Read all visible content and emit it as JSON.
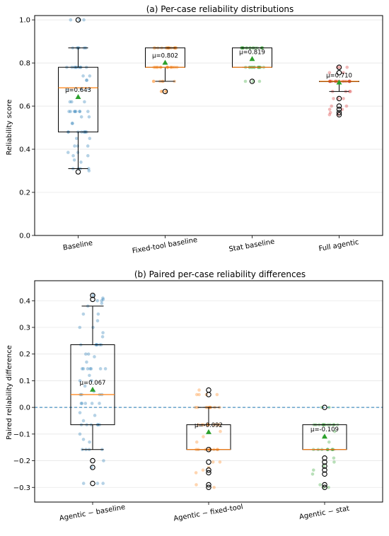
{
  "colors": {
    "baseline": "#1f77b4",
    "fixed": "#ff7f0e",
    "stat": "#2ca02c",
    "full": "#d62728",
    "mean_marker": "#2ca02c",
    "median": "#ff7f0e",
    "grid": "#e6e6e6",
    "zero_line": "#1f77b4"
  },
  "chart_data": [
    {
      "type": "box",
      "title": "(a) Per-case reliability distributions",
      "xlabel": "",
      "ylabel": "Reliability score",
      "ylim": [
        0.0,
        1.02
      ],
      "yticks": [
        0.0,
        0.2,
        0.4,
        0.6,
        0.8,
        1.0
      ],
      "ytick_labels": [
        "0.0",
        "0.2",
        "0.4",
        "0.6",
        "0.8",
        "1.0"
      ],
      "grid": true,
      "categories": [
        "Baseline",
        "Fixed-tool baseline",
        "Stat baseline",
        "Full agentic"
      ],
      "boxes": [
        {
          "q1": 0.48,
          "median": 0.685,
          "q3": 0.78,
          "whisker_low": 0.31,
          "whisker_high": 0.87,
          "mean": 0.643,
          "mean_label": "μ=0.643",
          "outliers": [
            1.0,
            0.295
          ],
          "color_key": "baseline",
          "points": [
            1.0,
            1.0,
            1.0,
            0.87,
            0.87,
            0.87,
            0.87,
            0.87,
            0.87,
            0.78,
            0.78,
            0.78,
            0.78,
            0.78,
            0.78,
            0.78,
            0.78,
            0.78,
            0.74,
            0.74,
            0.72,
            0.72,
            0.68,
            0.68,
            0.68,
            0.62,
            0.62,
            0.62,
            0.575,
            0.575,
            0.575,
            0.575,
            0.575,
            0.575,
            0.575,
            0.575,
            0.55,
            0.55,
            0.52,
            0.52,
            0.48,
            0.48,
            0.48,
            0.48,
            0.48,
            0.48,
            0.48,
            0.48,
            0.45,
            0.45,
            0.415,
            0.415,
            0.415,
            0.385,
            0.385,
            0.37,
            0.37,
            0.35,
            0.34,
            0.31,
            0.31,
            0.31,
            0.31,
            0.3
          ]
        },
        {
          "q1": 0.78,
          "median": 0.78,
          "q3": 0.87,
          "whisker_low": 0.715,
          "whisker_high": 0.87,
          "mean": 0.802,
          "mean_label": "μ=0.802",
          "outliers": [
            0.668
          ],
          "color_key": "fixed",
          "points": [
            0.87,
            0.87,
            0.87,
            0.87,
            0.87,
            0.87,
            0.87,
            0.87,
            0.87,
            0.87,
            0.87,
            0.87,
            0.87,
            0.87,
            0.87,
            0.87,
            0.78,
            0.78,
            0.78,
            0.78,
            0.78,
            0.78,
            0.78,
            0.78,
            0.78,
            0.78,
            0.78,
            0.78,
            0.78,
            0.78,
            0.715,
            0.715,
            0.715,
            0.715,
            0.715,
            0.715,
            0.668,
            0.668,
            0.668,
            0.668
          ]
        },
        {
          "q1": 0.78,
          "median": 0.78,
          "q3": 0.87,
          "whisker_low": 0.78,
          "whisker_high": 0.87,
          "mean": 0.819,
          "mean_label": "μ=0.819",
          "outliers": [
            0.715
          ],
          "color_key": "stat",
          "points": [
            0.87,
            0.87,
            0.87,
            0.87,
            0.87,
            0.87,
            0.87,
            0.87,
            0.87,
            0.87,
            0.87,
            0.87,
            0.87,
            0.87,
            0.87,
            0.87,
            0.87,
            0.87,
            0.78,
            0.78,
            0.78,
            0.78,
            0.78,
            0.78,
            0.78,
            0.78,
            0.78,
            0.78,
            0.78,
            0.78,
            0.78,
            0.715,
            0.715,
            0.715
          ]
        },
        {
          "q1": 0.715,
          "median": 0.715,
          "q3": 0.715,
          "whisker_low": 0.668,
          "whisker_high": 0.715,
          "mean": 0.71,
          "mean_label": "μ=0.710",
          "outliers": [
            0.78,
            0.755,
            0.635,
            0.6,
            0.585,
            0.57,
            0.56
          ],
          "color_key": "full",
          "points": [
            0.78,
            0.78,
            0.78,
            0.755,
            0.755,
            0.715,
            0.715,
            0.715,
            0.715,
            0.715,
            0.715,
            0.715,
            0.715,
            0.715,
            0.715,
            0.715,
            0.715,
            0.715,
            0.715,
            0.715,
            0.715,
            0.715,
            0.715,
            0.668,
            0.668,
            0.668,
            0.668,
            0.635,
            0.635,
            0.635,
            0.6,
            0.6,
            0.585,
            0.585,
            0.57,
            0.56,
            0.56
          ]
        }
      ]
    },
    {
      "type": "box",
      "title": "(b) Paired per-case reliability differences",
      "xlabel": "",
      "ylabel": "Paired reliability difference",
      "ylim": [
        -0.355,
        0.475
      ],
      "yticks": [
        -0.3,
        -0.2,
        -0.1,
        0.0,
        0.1,
        0.2,
        0.3,
        0.4
      ],
      "ytick_labels": [
        "−0.3",
        "−0.2",
        "−0.1",
        "0.0",
        "0.1",
        "0.2",
        "0.3",
        "0.4"
      ],
      "grid": true,
      "reference_line": 0.0,
      "categories": [
        "Agentic − baseline",
        "Agentic − fixed-tool",
        "Agentic − stat"
      ],
      "boxes": [
        {
          "q1": -0.065,
          "median": 0.048,
          "q3": 0.235,
          "whisker_low": -0.158,
          "whisker_high": 0.38,
          "mean": 0.067,
          "mean_label": "μ=0.067",
          "outliers": [
            0.42,
            0.405,
            -0.2,
            -0.225,
            -0.285
          ],
          "color_key": "baseline",
          "points": [
            0.42,
            0.41,
            0.405,
            0.4,
            0.4,
            0.39,
            0.38,
            0.35,
            0.35,
            0.325,
            0.3,
            0.3,
            0.28,
            0.265,
            0.235,
            0.235,
            0.235,
            0.235,
            0.235,
            0.235,
            0.2,
            0.2,
            0.19,
            0.17,
            0.145,
            0.145,
            0.145,
            0.145,
            0.145,
            0.145,
            0.145,
            0.12,
            0.1,
            0.1,
            0.08,
            0.06,
            0.048,
            0.048,
            0.048,
            0.048,
            0.015,
            0.015,
            0.015,
            0.015,
            0.015,
            -0.02,
            -0.03,
            -0.05,
            -0.065,
            -0.065,
            -0.065,
            -0.065,
            -0.065,
            -0.065,
            -0.1,
            -0.12,
            -0.13,
            -0.158,
            -0.158,
            -0.158,
            -0.158,
            -0.2,
            -0.225,
            -0.285,
            -0.285,
            -0.285
          ]
        },
        {
          "q1": -0.158,
          "median": -0.158,
          "q3": -0.065,
          "whisker_low": -0.158,
          "whisker_high": 0.0,
          "mean": -0.092,
          "mean_label": "μ=-0.092",
          "outliers": [
            0.065,
            0.048,
            -0.158,
            -0.205,
            -0.235,
            -0.245,
            -0.29,
            -0.3
          ],
          "color_key": "fixed",
          "points": [
            0.065,
            0.048,
            0.048,
            0.048,
            0.048,
            0.0,
            0.0,
            0.0,
            0.0,
            0.0,
            0.0,
            0.0,
            0.0,
            0.0,
            0.0,
            -0.065,
            -0.065,
            -0.065,
            -0.065,
            -0.065,
            -0.065,
            -0.065,
            -0.065,
            -0.065,
            -0.09,
            -0.11,
            -0.13,
            -0.158,
            -0.158,
            -0.158,
            -0.158,
            -0.158,
            -0.158,
            -0.158,
            -0.158,
            -0.158,
            -0.205,
            -0.205,
            -0.225,
            -0.235,
            -0.245,
            -0.29,
            -0.3
          ]
        },
        {
          "q1": -0.158,
          "median": -0.158,
          "q3": -0.065,
          "whisker_low": -0.158,
          "whisker_high": -0.065,
          "mean": -0.109,
          "mean_label": "μ=-0.109",
          "outliers": [
            0.0,
            -0.19,
            -0.205,
            -0.22,
            -0.235,
            -0.25,
            -0.29,
            -0.3
          ],
          "color_key": "stat",
          "points": [
            0.0,
            0.0,
            -0.065,
            -0.065,
            -0.065,
            -0.065,
            -0.065,
            -0.065,
            -0.065,
            -0.065,
            -0.065,
            -0.065,
            -0.065,
            -0.065,
            -0.09,
            -0.11,
            -0.13,
            -0.158,
            -0.158,
            -0.158,
            -0.158,
            -0.158,
            -0.158,
            -0.158,
            -0.158,
            -0.158,
            -0.19,
            -0.205,
            -0.22,
            -0.235,
            -0.25,
            -0.29,
            -0.3,
            -0.3
          ]
        }
      ]
    }
  ]
}
